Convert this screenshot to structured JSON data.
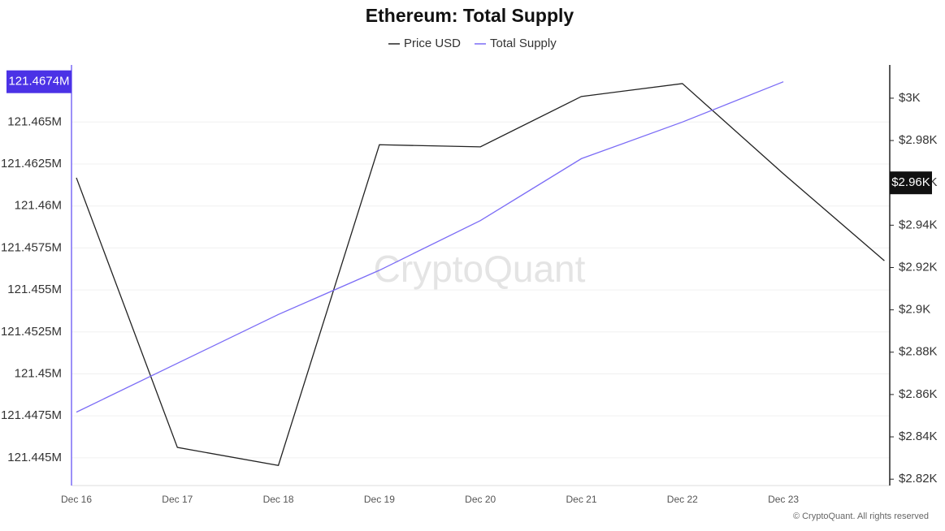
{
  "chart_data": {
    "type": "line",
    "title": "Ethereum: Total Supply",
    "categories": [
      "Dec 16",
      "Dec 17",
      "Dec 18",
      "Dec 19",
      "Dec 20",
      "Dec 21",
      "Dec 22",
      "Dec 23",
      null
    ],
    "series": [
      {
        "name": "Price USD",
        "color": "#222222",
        "axis": "y2",
        "values": [
          2962.4,
          2835,
          2826.5,
          2978,
          2977,
          3000.8,
          3006.9,
          2964.3,
          2923.2
        ]
      },
      {
        "name": "Total Supply",
        "color": "#7b6cf6",
        "axis": "y",
        "values": [
          121447720,
          121450630,
          121453540,
          121456170,
          121459130,
          121462820,
          121465000,
          121467400,
          null
        ]
      }
    ],
    "ylim": [
      121443350,
      121468400
    ],
    "yticks": [
      {
        "value": 121445000,
        "label": "121.445M"
      },
      {
        "value": 121447500,
        "label": "121.4475M"
      },
      {
        "value": 121450000,
        "label": "121.45M"
      },
      {
        "value": 121452500,
        "label": "121.4525M"
      },
      {
        "value": 121455000,
        "label": "121.455M"
      },
      {
        "value": 121457500,
        "label": "121.4575M"
      },
      {
        "value": 121460000,
        "label": "121.46M"
      },
      {
        "value": 121462500,
        "label": "121.4625M"
      },
      {
        "value": 121465000,
        "label": "121.465M"
      }
    ],
    "y2lim": [
      2817,
      3015.7
    ],
    "y2ticks": [
      {
        "value": 2820,
        "label": "$2.82K"
      },
      {
        "value": 2840,
        "label": "$2.84K"
      },
      {
        "value": 2860,
        "label": "$2.86K"
      },
      {
        "value": 2880,
        "label": "$2.88K"
      },
      {
        "value": 2900,
        "label": "$2.9K"
      },
      {
        "value": 2920,
        "label": "$2.92K"
      },
      {
        "value": 2940,
        "label": "$2.94K"
      },
      {
        "value": 2960,
        "label": "$2.96K"
      },
      {
        "value": 2980,
        "label": "$2.98K"
      },
      {
        "value": 3000,
        "label": "$3K"
      }
    ],
    "y_marker": {
      "value": 121467400,
      "label": "121.4674M"
    },
    "y2_marker": {
      "value": 2960,
      "label": "$2.96K"
    },
    "grid": true,
    "watermark": "CryptoQuant",
    "footer": "© CryptoQuant. All rights reserved"
  }
}
